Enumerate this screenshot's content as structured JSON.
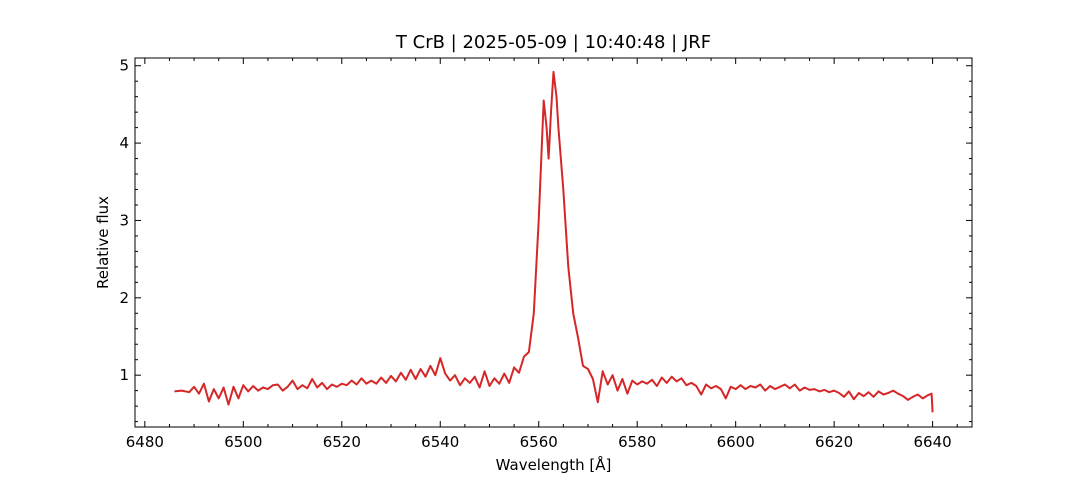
{
  "chart_data": {
    "type": "line",
    "title": "T CrB | 2025-05-09 | 10:40:48 | JRF",
    "xlabel": "Wavelength [Å]",
    "ylabel": "Relative flux",
    "xlim": [
      6478,
      6648
    ],
    "ylim": [
      0.33,
      5.1
    ],
    "x_ticks": [
      6480,
      6500,
      6520,
      6540,
      6560,
      6580,
      6600,
      6620,
      6640
    ],
    "y_ticks": [
      1,
      2,
      3,
      4,
      5
    ],
    "grid": false,
    "legend": "none",
    "series": [
      {
        "color": "#d62728",
        "points": [
          [
            6486.0,
            0.79
          ],
          [
            6487.5,
            0.8
          ],
          [
            6489.0,
            0.78
          ],
          [
            6490.0,
            0.85
          ],
          [
            6491.0,
            0.76
          ],
          [
            6492.0,
            0.89
          ],
          [
            6493.0,
            0.66
          ],
          [
            6494.0,
            0.82
          ],
          [
            6495.0,
            0.7
          ],
          [
            6496.0,
            0.84
          ],
          [
            6497.0,
            0.62
          ],
          [
            6498.0,
            0.85
          ],
          [
            6499.0,
            0.7
          ],
          [
            6500.0,
            0.87
          ],
          [
            6501.0,
            0.79
          ],
          [
            6502.0,
            0.86
          ],
          [
            6503.0,
            0.8
          ],
          [
            6504.0,
            0.84
          ],
          [
            6505.0,
            0.82
          ],
          [
            6506.0,
            0.87
          ],
          [
            6507.0,
            0.88
          ],
          [
            6508.0,
            0.8
          ],
          [
            6509.0,
            0.85
          ],
          [
            6510.0,
            0.93
          ],
          [
            6511.0,
            0.82
          ],
          [
            6512.0,
            0.87
          ],
          [
            6513.0,
            0.83
          ],
          [
            6514.0,
            0.95
          ],
          [
            6515.0,
            0.84
          ],
          [
            6516.0,
            0.9
          ],
          [
            6517.0,
            0.82
          ],
          [
            6518.0,
            0.88
          ],
          [
            6519.0,
            0.85
          ],
          [
            6520.0,
            0.89
          ],
          [
            6521.0,
            0.87
          ],
          [
            6522.0,
            0.93
          ],
          [
            6523.0,
            0.88
          ],
          [
            6524.0,
            0.96
          ],
          [
            6525.0,
            0.89
          ],
          [
            6526.0,
            0.93
          ],
          [
            6527.0,
            0.89
          ],
          [
            6528.0,
            0.97
          ],
          [
            6529.0,
            0.9
          ],
          [
            6530.0,
            0.99
          ],
          [
            6531.0,
            0.92
          ],
          [
            6532.0,
            1.03
          ],
          [
            6533.0,
            0.94
          ],
          [
            6534.0,
            1.07
          ],
          [
            6535.0,
            0.95
          ],
          [
            6536.0,
            1.08
          ],
          [
            6537.0,
            0.98
          ],
          [
            6538.0,
            1.12
          ],
          [
            6539.0,
            1.0
          ],
          [
            6540.0,
            1.22
          ],
          [
            6541.0,
            1.02
          ],
          [
            6542.0,
            0.93
          ],
          [
            6543.0,
            1.0
          ],
          [
            6544.0,
            0.87
          ],
          [
            6545.0,
            0.96
          ],
          [
            6546.0,
            0.9
          ],
          [
            6547.0,
            0.98
          ],
          [
            6548.0,
            0.84
          ],
          [
            6549.0,
            1.05
          ],
          [
            6550.0,
            0.86
          ],
          [
            6551.0,
            0.96
          ],
          [
            6552.0,
            0.89
          ],
          [
            6553.0,
            1.02
          ],
          [
            6554.0,
            0.9
          ],
          [
            6555.0,
            1.1
          ],
          [
            6556.0,
            1.03
          ],
          [
            6557.0,
            1.24
          ],
          [
            6558.0,
            1.3
          ],
          [
            6559.0,
            1.8
          ],
          [
            6560.0,
            3.0
          ],
          [
            6561.0,
            4.55
          ],
          [
            6561.6,
            4.2
          ],
          [
            6562.0,
            3.8
          ],
          [
            6562.5,
            4.4
          ],
          [
            6563.0,
            4.92
          ],
          [
            6563.6,
            4.6
          ],
          [
            6564.0,
            4.2
          ],
          [
            6565.0,
            3.4
          ],
          [
            6566.0,
            2.4
          ],
          [
            6567.0,
            1.8
          ],
          [
            6568.0,
            1.48
          ],
          [
            6569.0,
            1.12
          ],
          [
            6570.0,
            1.08
          ],
          [
            6571.0,
            0.95
          ],
          [
            6572.0,
            0.65
          ],
          [
            6573.0,
            1.05
          ],
          [
            6574.0,
            0.88
          ],
          [
            6575.0,
            1.0
          ],
          [
            6576.0,
            0.8
          ],
          [
            6577.0,
            0.95
          ],
          [
            6578.0,
            0.76
          ],
          [
            6579.0,
            0.93
          ],
          [
            6580.0,
            0.88
          ],
          [
            6581.0,
            0.92
          ],
          [
            6582.0,
            0.89
          ],
          [
            6583.0,
            0.94
          ],
          [
            6584.0,
            0.86
          ],
          [
            6585.0,
            0.97
          ],
          [
            6586.0,
            0.9
          ],
          [
            6587.0,
            0.98
          ],
          [
            6588.0,
            0.92
          ],
          [
            6589.0,
            0.96
          ],
          [
            6590.0,
            0.87
          ],
          [
            6591.0,
            0.9
          ],
          [
            6592.0,
            0.86
          ],
          [
            6593.0,
            0.75
          ],
          [
            6594.0,
            0.88
          ],
          [
            6595.0,
            0.83
          ],
          [
            6596.0,
            0.86
          ],
          [
            6597.0,
            0.82
          ],
          [
            6598.0,
            0.7
          ],
          [
            6599.0,
            0.85
          ],
          [
            6600.0,
            0.82
          ],
          [
            6601.0,
            0.87
          ],
          [
            6602.0,
            0.82
          ],
          [
            6603.0,
            0.86
          ],
          [
            6604.0,
            0.84
          ],
          [
            6605.0,
            0.88
          ],
          [
            6606.0,
            0.8
          ],
          [
            6607.0,
            0.86
          ],
          [
            6608.0,
            0.82
          ],
          [
            6609.0,
            0.85
          ],
          [
            6610.0,
            0.88
          ],
          [
            6611.0,
            0.83
          ],
          [
            6612.0,
            0.88
          ],
          [
            6613.0,
            0.8
          ],
          [
            6614.0,
            0.84
          ],
          [
            6615.0,
            0.81
          ],
          [
            6616.0,
            0.82
          ],
          [
            6617.0,
            0.79
          ],
          [
            6618.0,
            0.81
          ],
          [
            6619.0,
            0.78
          ],
          [
            6620.0,
            0.8
          ],
          [
            6621.0,
            0.77
          ],
          [
            6622.0,
            0.72
          ],
          [
            6623.0,
            0.79
          ],
          [
            6624.0,
            0.69
          ],
          [
            6625.0,
            0.77
          ],
          [
            6626.0,
            0.73
          ],
          [
            6627.0,
            0.78
          ],
          [
            6628.0,
            0.72
          ],
          [
            6629.0,
            0.79
          ],
          [
            6630.0,
            0.75
          ],
          [
            6631.0,
            0.77
          ],
          [
            6632.0,
            0.8
          ],
          [
            6633.0,
            0.76
          ],
          [
            6634.0,
            0.73
          ],
          [
            6635.0,
            0.68
          ],
          [
            6636.0,
            0.72
          ],
          [
            6637.0,
            0.75
          ],
          [
            6638.0,
            0.7
          ],
          [
            6639.0,
            0.74
          ],
          [
            6639.8,
            0.76
          ],
          [
            6640.0,
            0.52
          ]
        ]
      }
    ]
  }
}
